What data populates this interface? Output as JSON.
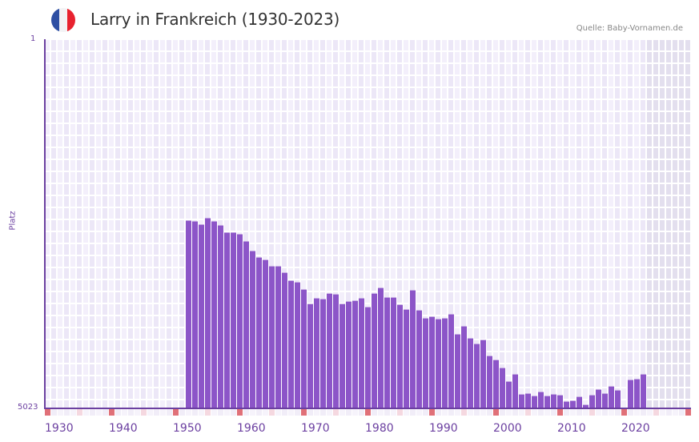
{
  "header": {
    "title": "Larry in Frankreich (1930-2023)",
    "source": "Quelle: Baby-Vornamen.de",
    "flag_colors": [
      "#2e4fa3",
      "#f3f3f5",
      "#e8222f"
    ]
  },
  "axis": {
    "y_label": "Platz",
    "y_top": "1",
    "y_bottom": "5023",
    "x_ticks": [
      "1930",
      "1940",
      "1950",
      "1960",
      "1970",
      "1980",
      "1990",
      "2000",
      "2010",
      "2020"
    ]
  },
  "colors": {
    "bar": "#8c55c8",
    "axis": "#6b3fa0",
    "grid_a": "#f3effb",
    "grid_b": "#ece7f7",
    "future": "#e3dfee",
    "marker_decade": "#e07078",
    "marker_half": "#f5d8e0"
  },
  "chart_data": {
    "type": "bar",
    "title": "Larry in Frankreich (1930-2023)",
    "xlabel": "",
    "ylabel": "Platz",
    "ylim": [
      5023,
      1
    ],
    "y_inverted": true,
    "grid": true,
    "x_range": [
      1930,
      2030
    ],
    "categories": [
      1952,
      1953,
      1954,
      1955,
      1956,
      1957,
      1958,
      1959,
      1960,
      1961,
      1962,
      1963,
      1964,
      1965,
      1966,
      1967,
      1968,
      1969,
      1970,
      1971,
      1972,
      1973,
      1974,
      1975,
      1976,
      1977,
      1978,
      1979,
      1980,
      1981,
      1982,
      1983,
      1984,
      1985,
      1986,
      1987,
      1988,
      1989,
      1990,
      1991,
      1992,
      1993,
      1994,
      1995,
      1996,
      1997,
      1998,
      1999,
      2000,
      2001,
      2002,
      2003,
      2004,
      2005,
      2006,
      2007,
      2008,
      2009,
      2010,
      2011,
      2012,
      2013,
      2014,
      2015,
      2016,
      2017,
      2018,
      2019,
      2021,
      2022,
      2023
    ],
    "values": [
      2474,
      2485,
      2529,
      2441,
      2485,
      2540,
      2638,
      2638,
      2660,
      2758,
      2889,
      2977,
      3010,
      3097,
      3097,
      3185,
      3294,
      3316,
      3414,
      3611,
      3534,
      3545,
      3469,
      3480,
      3611,
      3578,
      3567,
      3534,
      3654,
      3469,
      3392,
      3523,
      3523,
      3622,
      3687,
      3425,
      3698,
      3807,
      3785,
      3818,
      3807,
      3752,
      4025,
      3916,
      4080,
      4156,
      4102,
      4320,
      4375,
      4484,
      4669,
      4571,
      4844,
      4833,
      4866,
      4811,
      4866,
      4844,
      4855,
      4942,
      4931,
      4877,
      4986,
      4855,
      4778,
      4833,
      4735,
      4789,
      4647,
      4636,
      4571
    ]
  }
}
